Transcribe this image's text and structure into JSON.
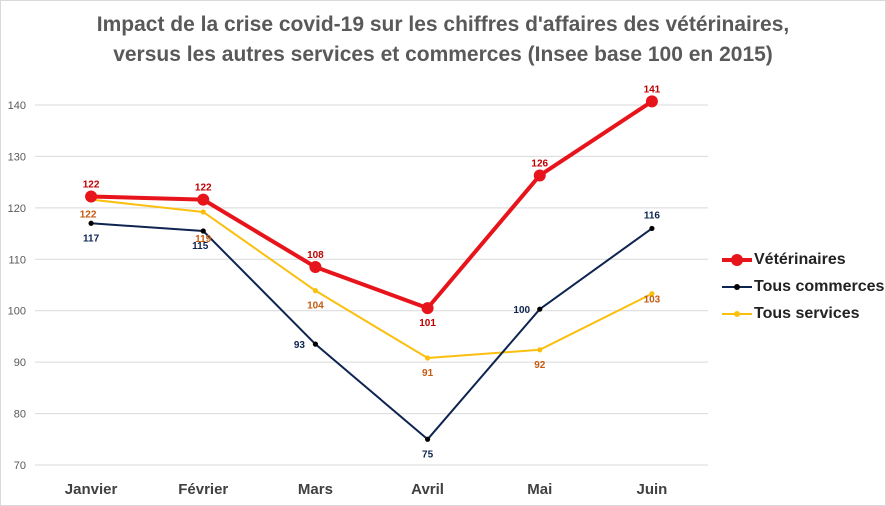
{
  "chart_data": {
    "type": "line",
    "title": [
      "Impact de la crise covid-19 sur les chiffres d'affaires des vétérinaires,",
      "versus les autres services et commerces (Insee base 100 en 2015)"
    ],
    "categories": [
      "Janvier",
      "Février",
      "Mars",
      "Avril",
      "Mai",
      "Juin"
    ],
    "ylim": [
      70,
      140
    ],
    "yticks": [
      70,
      80,
      90,
      100,
      110,
      120,
      130,
      140
    ],
    "grid": true,
    "legend_position": "right",
    "series": [
      {
        "name": "Vétérinaires",
        "color": "#e8141b",
        "label_color": "#c00000",
        "values": [
          122.2,
          121.6,
          108.5,
          100.5,
          126.3,
          140.7
        ],
        "labels": [
          "122",
          "122",
          "108",
          "101",
          "126",
          "141"
        ]
      },
      {
        "name": "Tous commerces",
        "color": "#0e2451",
        "label_color": "#0e2451",
        "values": [
          117.0,
          115.5,
          93.5,
          75.0,
          100.3,
          116.0
        ],
        "labels": [
          "117",
          "115",
          "93",
          "75",
          "100",
          "116"
        ]
      },
      {
        "name": "Tous services",
        "color": "#fbbf10",
        "label_color": "#c55a11",
        "values": [
          121.6,
          119.2,
          103.9,
          90.8,
          92.4,
          103.3
        ],
        "labels": [
          "122",
          "119",
          "104",
          "91",
          "92",
          "103"
        ]
      }
    ]
  }
}
